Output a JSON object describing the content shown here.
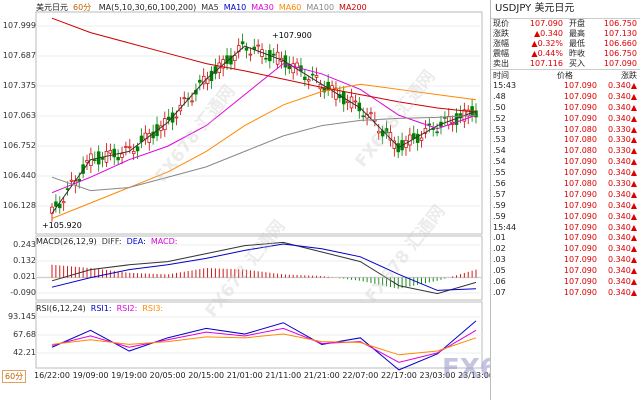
{
  "chart": {
    "symbol_cn": "美元日元",
    "period_tag": "60分",
    "timeframe_badge": "60分",
    "ma_legend": {
      "label": "MA(5,10,30,60,100,200)",
      "items": [
        {
          "name": "MA5",
          "color": "#333333"
        },
        {
          "name": "MA10",
          "color": "#0000cc"
        },
        {
          "name": "MA30",
          "color": "#dd00dd"
        },
        {
          "name": "MA60",
          "color": "#ff8800"
        },
        {
          "name": "MA100",
          "color": "#888888"
        },
        {
          "name": "MA200",
          "color": "#cc0000"
        }
      ]
    },
    "price_axis": [
      "107.999",
      "107.687",
      "107.375",
      "107.063",
      "106.752",
      "106.440",
      "106.128"
    ],
    "macd_axis": [
      "0.243",
      "0.132",
      "0.021",
      "-0.090"
    ],
    "rsi_axis": [
      "93.145",
      "67.68",
      "42.21"
    ],
    "high_label": "+107.900",
    "low_label": "+105.920",
    "macd_legend": {
      "label": "MACD(26,12,9)",
      "items": [
        {
          "name": "DIFF:",
          "color": "#333333"
        },
        {
          "name": "DEA:",
          "color": "#0000cc"
        },
        {
          "name": "MACD:",
          "color": "#dd00dd"
        }
      ]
    },
    "rsi_legend": {
      "label": "RSI(6,12,24)",
      "items": [
        {
          "name": "RSI1:",
          "color": "#0000cc"
        },
        {
          "name": "RSI2:",
          "color": "#dd00dd"
        },
        {
          "name": "RSI3:",
          "color": "#ff8800"
        }
      ]
    },
    "x_ticks": [
      "16/22:00",
      "19/09:00",
      "19/19:00",
      "20/05:00",
      "20/15:00",
      "21/01:00",
      "21/11:00",
      "21/21:00",
      "22/07:00",
      "22/17:00",
      "23/03:00",
      "23/13:00"
    ],
    "watermark": "FX678 汇通网",
    "logo": "FX678 汇通网"
  },
  "chart_data": [
    {
      "type": "line",
      "panel": "price",
      "description_axes": "hourly candlesticks USDJPY",
      "x": [
        "16/22:00",
        "19/09:00",
        "19/19:00",
        "20/05:00",
        "20/15:00",
        "21/01:00",
        "21/11:00",
        "21/21:00",
        "22/07:00",
        "22/17:00",
        "23/03:00",
        "23/13:00"
      ],
      "series": [
        {
          "name": "MA5",
          "values": [
            106.1,
            106.62,
            106.7,
            106.98,
            107.4,
            107.72,
            107.58,
            107.35,
            107.12,
            106.74,
            106.95,
            107.09
          ]
        },
        {
          "name": "MA30",
          "values": [
            106.3,
            106.45,
            106.62,
            106.75,
            106.95,
            107.25,
            107.55,
            107.45,
            107.3,
            107.05,
            106.92,
            107.05
          ]
        },
        {
          "name": "MA60",
          "values": [
            106.05,
            106.2,
            106.35,
            106.5,
            106.7,
            106.95,
            107.15,
            107.28,
            107.35,
            107.3,
            107.25,
            107.2
          ]
        },
        {
          "name": "MA100",
          "values": [
            106.45,
            106.32,
            106.35,
            106.45,
            106.55,
            106.7,
            106.85,
            106.95,
            107.0,
            107.02,
            107.03,
            107.05
          ]
        },
        {
          "name": "MA200",
          "values": [
            107.99,
            107.85,
            107.75,
            107.65,
            107.55,
            107.48,
            107.4,
            107.32,
            107.25,
            107.18,
            107.12,
            107.08
          ]
        }
      ],
      "annotations": [
        {
          "text": "+107.900"
        },
        {
          "text": "+105.920"
        }
      ],
      "ylim": [
        105.9,
        108.05
      ]
    },
    {
      "type": "bar",
      "panel": "macd",
      "categories": [
        "16/22:00",
        "19/09:00",
        "19/19:00",
        "20/05:00",
        "20/15:00",
        "21/01:00",
        "21/11:00",
        "21/21:00",
        "22/07:00",
        "22/17:00",
        "23/03:00",
        "23/13:00"
      ],
      "series": [
        {
          "name": "MACD:",
          "values": [
            0.08,
            0.06,
            0.03,
            0.02,
            0.06,
            0.05,
            0.02,
            0.01,
            -0.02,
            -0.07,
            -0.02,
            0.05
          ]
        },
        {
          "name": "DIFF:",
          "values": [
            -0.02,
            0.05,
            0.08,
            0.1,
            0.15,
            0.2,
            0.22,
            0.16,
            0.1,
            -0.05,
            -0.1,
            -0.03
          ]
        },
        {
          "name": "DEA:",
          "values": [
            -0.06,
            0.0,
            0.05,
            0.08,
            0.12,
            0.17,
            0.21,
            0.18,
            0.13,
            0.02,
            -0.08,
            -0.07
          ]
        }
      ],
      "ylim": [
        -0.14,
        0.26
      ]
    },
    {
      "type": "line",
      "panel": "rsi",
      "x": [
        "16/22:00",
        "19/09:00",
        "19/19:00",
        "20/05:00",
        "20/15:00",
        "21/01:00",
        "21/11:00",
        "21/21:00",
        "22/07:00",
        "22/17:00",
        "23/03:00",
        "23/13:00"
      ],
      "series": [
        {
          "name": "RSI1:",
          "values": [
            52,
            70,
            48,
            62,
            72,
            66,
            78,
            55,
            62,
            28,
            45,
            80
          ]
        },
        {
          "name": "RSI2:",
          "values": [
            54,
            64,
            52,
            60,
            68,
            64,
            72,
            56,
            58,
            36,
            46,
            70
          ]
        },
        {
          "name": "RSI3:",
          "values": [
            55,
            60,
            55,
            58,
            63,
            62,
            66,
            58,
            57,
            44,
            48,
            62
          ]
        }
      ],
      "ylim": [
        30,
        100
      ]
    }
  ],
  "quote": {
    "symbol": "USDJPY",
    "name_cn": "美元日元",
    "fields": [
      {
        "k": "现价",
        "v": "107.090",
        "k2": "开盘",
        "v2": "106.750"
      },
      {
        "k": "涨跌",
        "v": "▲0.340",
        "k2": "最高",
        "v2": "107.130"
      },
      {
        "k": "涨幅",
        "v": "▲0.32%",
        "k2": "最低",
        "v2": "106.660"
      },
      {
        "k": "震幅",
        "v": "▲0.44%",
        "k2": "昨收",
        "v2": "106.750"
      },
      {
        "k": "卖出",
        "v": "107.116",
        "k2": "买入",
        "v2": "107.090"
      }
    ],
    "ticks_header": [
      "时间",
      "价格",
      "涨跌"
    ],
    "ticks": [
      {
        "t": "15:43",
        "p": "107.090",
        "c": "0.340▲"
      },
      {
        "t": ".48",
        "p": "107.090",
        "c": "0.340▲"
      },
      {
        "t": ".50",
        "p": "107.090",
        "c": "0.340▲"
      },
      {
        "t": ".52",
        "p": "107.090",
        "c": "0.340▲"
      },
      {
        "t": ".53",
        "p": "107.080",
        "c": "0.330▲"
      },
      {
        "t": ".53",
        "p": "107.080",
        "c": "0.330▲"
      },
      {
        "t": ".54",
        "p": "107.080",
        "c": "0.330▲"
      },
      {
        "t": ".54",
        "p": "107.090",
        "c": "0.340▲"
      },
      {
        "t": ".55",
        "p": "107.090",
        "c": "0.340▲"
      },
      {
        "t": ".56",
        "p": "107.080",
        "c": "0.330▲"
      },
      {
        "t": ".57",
        "p": "107.090",
        "c": "0.340▲"
      },
      {
        "t": ".59",
        "p": "107.090",
        "c": "0.340▲"
      },
      {
        "t": ".59",
        "p": "107.090",
        "c": "0.340▲"
      },
      {
        "t": "15:44",
        "p": "107.090",
        "c": "0.340▲"
      },
      {
        "t": ".01",
        "p": "107.090",
        "c": "0.340▲"
      },
      {
        "t": ".02",
        "p": "107.090",
        "c": "0.340▲"
      },
      {
        "t": ".03",
        "p": "107.090",
        "c": "0.340▲"
      },
      {
        "t": ".05",
        "p": "107.090",
        "c": "0.340▲"
      },
      {
        "t": ".06",
        "p": "107.090",
        "c": "0.340▲"
      },
      {
        "t": ".07",
        "p": "107.090",
        "c": "0.340▲"
      }
    ]
  }
}
